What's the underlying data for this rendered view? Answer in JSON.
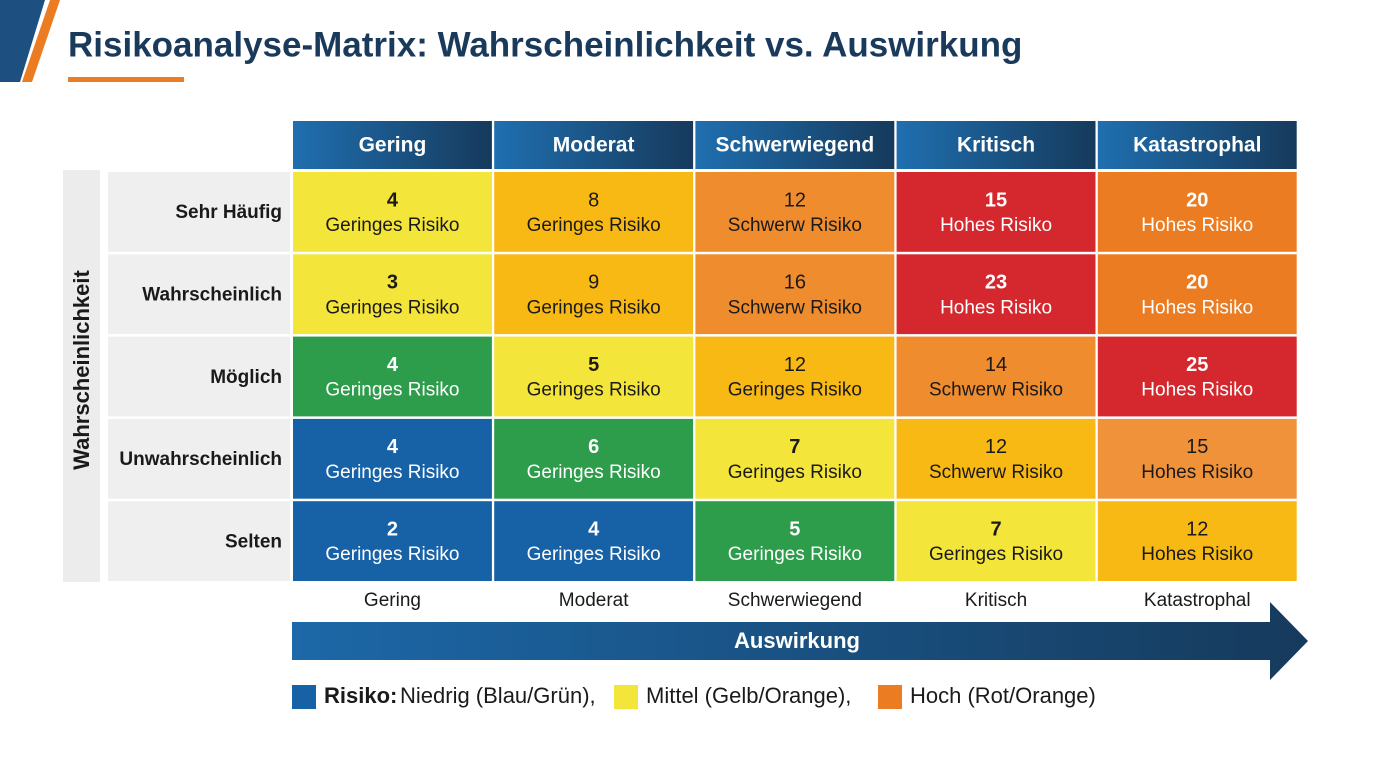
{
  "header": {
    "title": "Risikoanalyse-Matrix: Wahrscheinlichkeit vs. Auswirkung"
  },
  "matrix": {
    "y_axis_label": "Wahrscheinlichkeit",
    "columns": [
      "Gering",
      "Moderat",
      "Schwerwiegend",
      "Kritisch",
      "Katastrophal"
    ],
    "rows": [
      {
        "label": "Sehr Häufig",
        "cells": [
          {
            "value": 4,
            "label": "Geringes Risiko",
            "color": "#f3e53a",
            "text_color": "#1a1a1a",
            "bold": true
          },
          {
            "value": 8,
            "label": "Geringes Risiko",
            "color": "#f9b914",
            "text_color": "#1a1a1a",
            "bold": false
          },
          {
            "value": 12,
            "label": "Schwerw Risiko",
            "color": "#ef8c2e",
            "text_color": "#1a1a1a",
            "bold": false
          },
          {
            "value": 15,
            "label": "Hohes Risiko",
            "color": "#d4282e",
            "text_color": "#ffffff",
            "bold": true
          },
          {
            "value": 20,
            "label": "Hohes Risiko",
            "color": "#ec7c22",
            "text_color": "#ffffff",
            "bold": true
          }
        ]
      },
      {
        "label": "Wahrscheinlich",
        "cells": [
          {
            "value": 3,
            "label": "Geringes Risiko",
            "color": "#f3e53a",
            "text_color": "#1a1a1a",
            "bold": true
          },
          {
            "value": 9,
            "label": "Geringes Risiko",
            "color": "#f9b914",
            "text_color": "#1a1a1a",
            "bold": false
          },
          {
            "value": 16,
            "label": "Schwerw Risiko",
            "color": "#ef8c2e",
            "text_color": "#1a1a1a",
            "bold": false
          },
          {
            "value": 23,
            "label": "Hohes Risiko",
            "color": "#d4282e",
            "text_color": "#ffffff",
            "bold": true
          },
          {
            "value": 20,
            "label": "Hohes Risiko",
            "color": "#ec7c22",
            "text_color": "#ffffff",
            "bold": true
          }
        ]
      },
      {
        "label": "Möglich",
        "cells": [
          {
            "value": 4,
            "label": "Geringes Risiko",
            "color": "#2d9c4b",
            "text_color": "#ffffff",
            "bold": true
          },
          {
            "value": 5,
            "label": "Geringes Risiko",
            "color": "#f3e53a",
            "text_color": "#1a1a1a",
            "bold": true
          },
          {
            "value": 12,
            "label": "Geringes Risiko",
            "color": "#f9b914",
            "text_color": "#1a1a1a",
            "bold": false
          },
          {
            "value": 14,
            "label": "Schwerw Risiko",
            "color": "#ef8c2e",
            "text_color": "#1a1a1a",
            "bold": false
          },
          {
            "value": 25,
            "label": "Hohes Risiko",
            "color": "#d4282e",
            "text_color": "#ffffff",
            "bold": true
          }
        ]
      },
      {
        "label": "Unwahrscheinlich",
        "cells": [
          {
            "value": 4,
            "label": "Geringes Risiko",
            "color": "#1762a6",
            "text_color": "#ffffff",
            "bold": true
          },
          {
            "value": 6,
            "label": "Geringes Risiko",
            "color": "#2d9c4b",
            "text_color": "#ffffff",
            "bold": true
          },
          {
            "value": 7,
            "label": "Geringes Risiko",
            "color": "#f3e53a",
            "text_color": "#1a1a1a",
            "bold": true
          },
          {
            "value": 12,
            "label": "Schwerw Risiko",
            "color": "#f9b914",
            "text_color": "#1a1a1a",
            "bold": false
          },
          {
            "value": 15,
            "label": "Hohes Risiko",
            "color": "#f0923a",
            "text_color": "#1a1a1a",
            "bold": false
          }
        ]
      },
      {
        "label": "Selten",
        "cells": [
          {
            "value": 2,
            "label": "Geringes Risiko",
            "color": "#1762a6",
            "text_color": "#ffffff",
            "bold": true
          },
          {
            "value": 4,
            "label": "Geringes Risiko",
            "color": "#1762a6",
            "text_color": "#ffffff",
            "bold": true
          },
          {
            "value": 5,
            "label": "Geringes Risiko",
            "color": "#2d9c4b",
            "text_color": "#ffffff",
            "bold": true
          },
          {
            "value": 7,
            "label": "Geringes Risiko",
            "color": "#f3e53a",
            "text_color": "#1a1a1a",
            "bold": true
          },
          {
            "value": 12,
            "label": "Hohes Risiko",
            "color": "#f9b914",
            "text_color": "#1a1a1a",
            "bold": false
          }
        ]
      }
    ],
    "x_axis_labels": [
      "Gering",
      "Moderat",
      "Schwerwiegend",
      "Kritisch",
      "Katastrophal"
    ],
    "x_axis_label": "Auswirkung"
  },
  "legend": {
    "title": "Risiko:",
    "items": [
      {
        "label": "Niedrig (Blau/Grün),",
        "color": "#1762a6"
      },
      {
        "label": "Mittel (Gelb/Orange),",
        "color": "#f3e53a"
      },
      {
        "label": "Hoch (Rot/Orange)",
        "color": "#ec7c22"
      }
    ]
  }
}
